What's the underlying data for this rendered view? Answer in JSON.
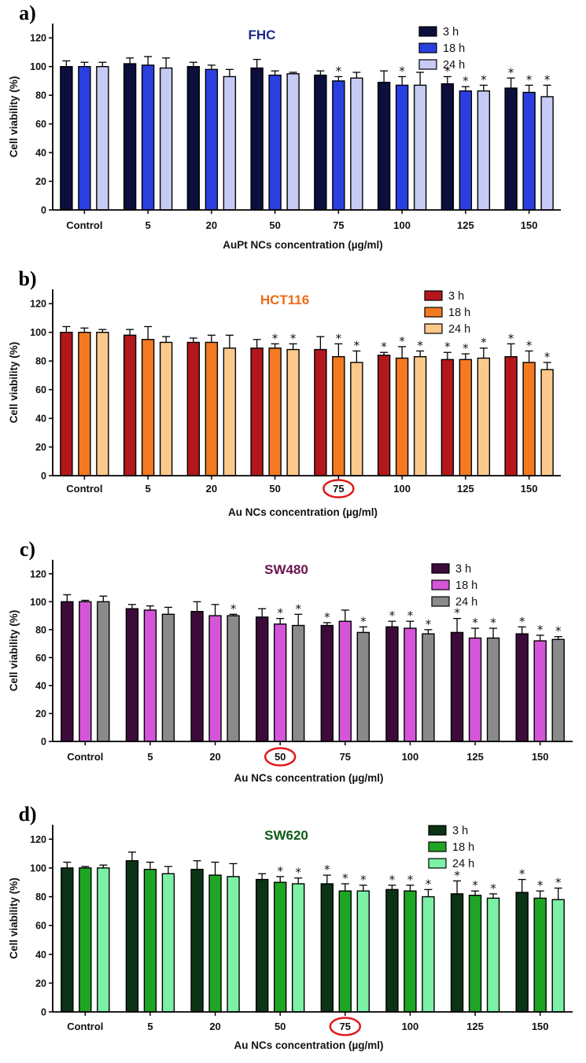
{
  "chart_data": [
    {
      "type": "bar",
      "panel_label": "a)",
      "title": "FHC",
      "title_color": "#1c2a8c",
      "xlabel": "AuPt NCs concentration (µg/ml)",
      "ylabel": "Cell viability (%)",
      "ylim": [
        0,
        130
      ],
      "yticks": [
        0,
        20,
        40,
        60,
        80,
        100,
        120
      ],
      "categories": [
        "Control",
        "5",
        "20",
        "50",
        "75",
        "100",
        "125",
        "150"
      ],
      "highlighted_category": null,
      "series": [
        {
          "name": "3 h",
          "color": "#0a0f3c",
          "values": [
            100,
            102,
            100,
            99,
            94,
            89,
            88,
            85
          ],
          "errors": [
            4,
            4,
            3,
            6,
            3,
            8,
            5,
            7
          ],
          "significant": [
            false,
            false,
            false,
            false,
            false,
            false,
            true,
            true
          ]
        },
        {
          "name": "18 h",
          "color": "#2b3fe0",
          "values": [
            100,
            101,
            98,
            94,
            90,
            87,
            83,
            82
          ],
          "errors": [
            3,
            6,
            3,
            3,
            3,
            6,
            3,
            5
          ],
          "significant": [
            false,
            false,
            false,
            false,
            true,
            true,
            true,
            true
          ]
        },
        {
          "name": "24 h",
          "color": "#c6cbf5",
          "values": [
            100,
            99,
            93,
            95,
            92,
            87,
            83,
            79
          ],
          "errors": [
            3,
            7,
            5,
            1,
            4,
            9,
            4,
            8
          ],
          "significant": [
            false,
            false,
            false,
            false,
            false,
            false,
            true,
            true
          ]
        }
      ]
    },
    {
      "type": "bar",
      "panel_label": "b)",
      "title": "HCT116",
      "title_color": "#f26a1b",
      "xlabel": "Au NCs concentration (µg/ml)",
      "ylabel": "Cell viability (%)",
      "ylim": [
        0,
        130
      ],
      "yticks": [
        0,
        20,
        40,
        60,
        80,
        100,
        120
      ],
      "categories": [
        "Control",
        "5",
        "20",
        "50",
        "75",
        "100",
        "125",
        "150"
      ],
      "highlighted_category": "75",
      "series": [
        {
          "name": "3 h",
          "color": "#b3171c",
          "values": [
            100,
            98,
            93,
            89,
            88,
            84,
            81,
            83
          ],
          "errors": [
            4,
            4,
            3,
            6,
            9,
            2,
            5,
            9
          ],
          "significant": [
            false,
            false,
            false,
            false,
            false,
            true,
            true,
            true
          ]
        },
        {
          "name": "18 h",
          "color": "#f47a22",
          "values": [
            100,
            95,
            93,
            89,
            83,
            82,
            81,
            79
          ],
          "errors": [
            3,
            9,
            5,
            3,
            9,
            8,
            4,
            8
          ],
          "significant": [
            false,
            false,
            false,
            true,
            true,
            true,
            true,
            true
          ]
        },
        {
          "name": "24 h",
          "color": "#fcc98c",
          "values": [
            100,
            93,
            89,
            88,
            79,
            83,
            82,
            74
          ],
          "errors": [
            2,
            4,
            9,
            4,
            8,
            4,
            7,
            5
          ],
          "significant": [
            false,
            false,
            false,
            true,
            true,
            true,
            true,
            true
          ]
        }
      ]
    },
    {
      "type": "bar",
      "panel_label": "c)",
      "title": "SW480",
      "title_color": "#6b1450",
      "xlabel": "Au NCs concentration (µg/ml)",
      "ylabel": "Cell viability (%)",
      "ylim": [
        0,
        130
      ],
      "yticks": [
        0,
        20,
        40,
        60,
        80,
        100,
        120
      ],
      "categories": [
        "Control",
        "5",
        "20",
        "50",
        "75",
        "100",
        "125",
        "150"
      ],
      "highlighted_category": "50",
      "series": [
        {
          "name": "3 h",
          "color": "#3d0b3a",
          "values": [
            100,
            95,
            93,
            89,
            83,
            82,
            78,
            77
          ],
          "errors": [
            5,
            3,
            7,
            6,
            2,
            4,
            10,
            5
          ],
          "significant": [
            false,
            false,
            false,
            false,
            true,
            true,
            true,
            true
          ]
        },
        {
          "name": "18 h",
          "color": "#d455d8",
          "values": [
            100,
            94,
            90,
            84,
            86,
            81,
            74,
            72
          ],
          "errors": [
            1,
            3,
            8,
            4,
            8,
            5,
            7,
            4
          ],
          "significant": [
            false,
            false,
            false,
            true,
            false,
            true,
            true,
            true
          ]
        },
        {
          "name": "24 h",
          "color": "#8a8a8a",
          "values": [
            100,
            91,
            90,
            83,
            78,
            77,
            74,
            73
          ],
          "errors": [
            4,
            5,
            1,
            8,
            4,
            3,
            7,
            2
          ],
          "significant": [
            false,
            false,
            true,
            true,
            true,
            true,
            true,
            true
          ]
        }
      ]
    },
    {
      "type": "bar",
      "panel_label": "d)",
      "title": "SW620",
      "title_color": "#0f5a17",
      "xlabel": "Au NCs concentration (µg/ml)",
      "ylabel": "Cell viability (%)",
      "ylim": [
        0,
        130
      ],
      "yticks": [
        0,
        20,
        40,
        60,
        80,
        100,
        120
      ],
      "categories": [
        "Control",
        "5",
        "20",
        "50",
        "75",
        "100",
        "125",
        "150"
      ],
      "highlighted_category": "75",
      "series": [
        {
          "name": "3 h",
          "color": "#0b3315",
          "values": [
            100,
            105,
            99,
            92,
            89,
            85,
            82,
            83
          ],
          "errors": [
            4,
            6,
            6,
            4,
            6,
            3,
            9,
            9
          ],
          "significant": [
            false,
            false,
            false,
            false,
            true,
            true,
            true,
            true
          ]
        },
        {
          "name": "18 h",
          "color": "#1fa524",
          "values": [
            100,
            99,
            95,
            90,
            84,
            84,
            81,
            79
          ],
          "errors": [
            1,
            5,
            9,
            4,
            5,
            4,
            3,
            5
          ],
          "significant": [
            false,
            false,
            false,
            true,
            true,
            true,
            true,
            true
          ]
        },
        {
          "name": "24 h",
          "color": "#7cf0a5",
          "values": [
            100,
            96,
            94,
            89,
            84,
            80,
            79,
            78
          ],
          "errors": [
            2,
            5,
            9,
            4,
            4,
            5,
            3,
            8
          ],
          "significant": [
            false,
            false,
            false,
            true,
            true,
            true,
            true,
            true
          ]
        }
      ]
    }
  ],
  "significance_marker": "*",
  "highlight_color": "#e01818"
}
